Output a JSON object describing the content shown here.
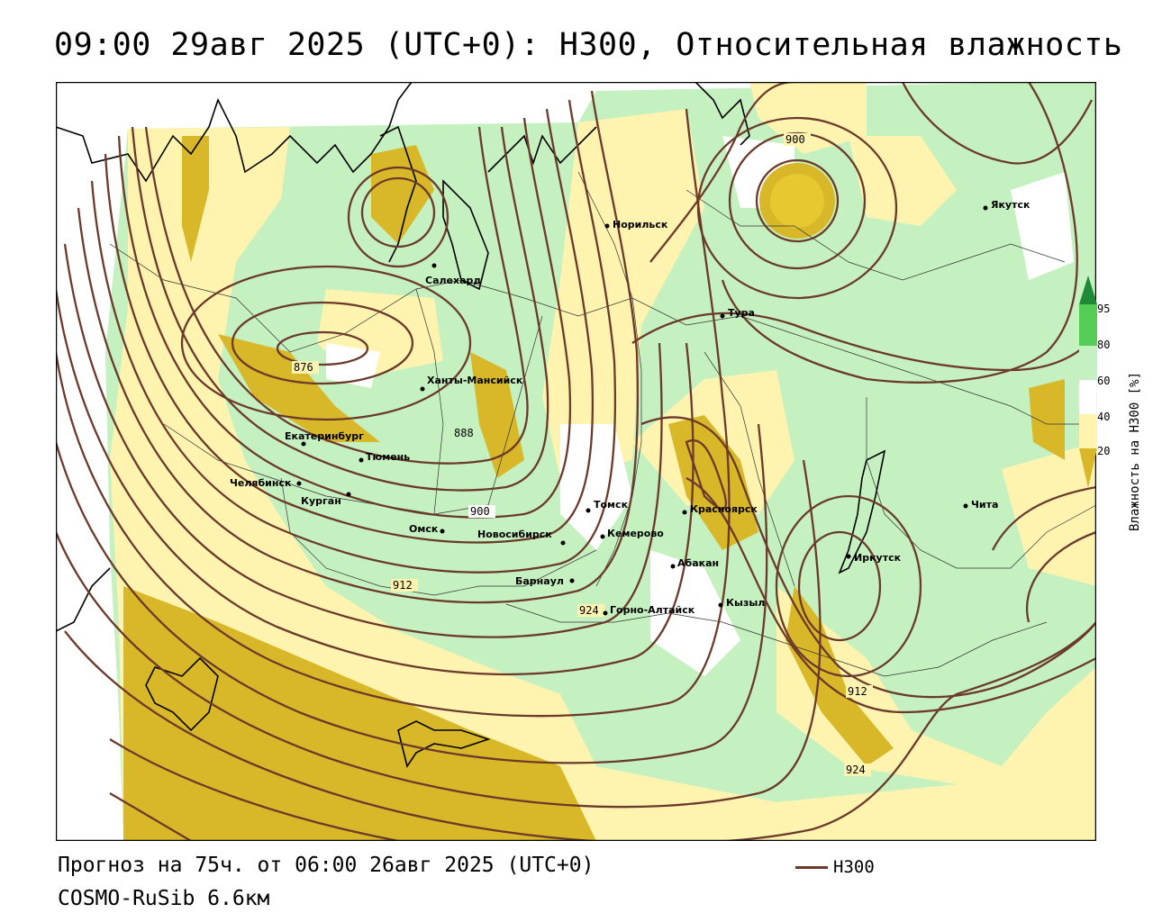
{
  "title": "09:00 29авг 2025 (UTC+0): H300, Относительная влажность",
  "footer": {
    "forecast": "Прогноз на 75ч. от 06:00 26авг 2025 (UTC+0)",
    "model": "COSMO-RuSib 6.6км"
  },
  "legend": {
    "line_label": "H300",
    "line_color": "#6b3a2a"
  },
  "colorbar": {
    "title": "Влажность на H300 [%]",
    "ticks": [
      "95",
      "80",
      "60",
      "40",
      "20"
    ],
    "colors": {
      "lt20": "#d8b828",
      "20_40": "#fff3b0",
      "40_60": "#ffffff",
      "60_80": "#c5f0c0",
      "80_95": "#55cc55",
      "gt95": "#1f8a35"
    }
  },
  "cities": [
    {
      "name": "Салехард"
    },
    {
      "name": "Норильск"
    },
    {
      "name": "Якутск"
    },
    {
      "name": "Тура"
    },
    {
      "name": "Ханты-Мансийск"
    },
    {
      "name": "Екатеринбург"
    },
    {
      "name": "Тюмень"
    },
    {
      "name": "Челябинск"
    },
    {
      "name": "Курган"
    },
    {
      "name": "Омск"
    },
    {
      "name": "Новосибирск"
    },
    {
      "name": "Томск"
    },
    {
      "name": "Кемерово"
    },
    {
      "name": "Красноярск"
    },
    {
      "name": "Барнаул"
    },
    {
      "name": "Абакан"
    },
    {
      "name": "Горно-Алтайск"
    },
    {
      "name": "Кызыл"
    },
    {
      "name": "Иркутск"
    },
    {
      "name": "Чита"
    }
  ],
  "contour_labels": [
    "876",
    "888",
    "900",
    "912",
    "924",
    "900",
    "912",
    "924"
  ]
}
